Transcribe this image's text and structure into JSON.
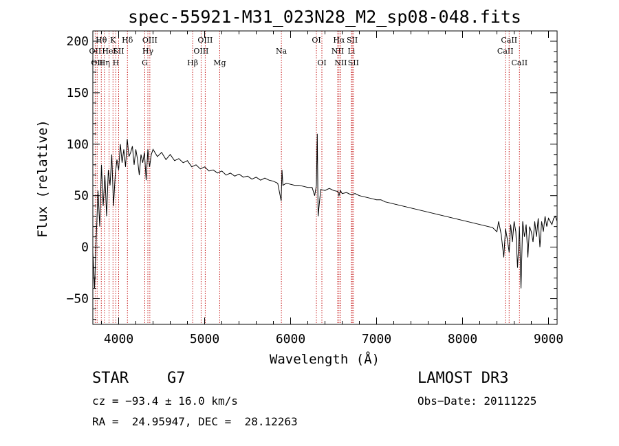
{
  "chart_data": {
    "type": "line",
    "title": "spec-55921-M31_023N28_M2_sp08-048.fits",
    "xlabel": "Wavelength (Å)",
    "ylabel": "Flux (relative)",
    "xlim": [
      3700,
      9100
    ],
    "ylim": [
      -75,
      210
    ],
    "x_ticks": [
      4000,
      5000,
      6000,
      7000,
      8000,
      9000
    ],
    "y_ticks": [
      -50,
      0,
      50,
      100,
      150,
      200
    ],
    "series": [
      {
        "name": "spectrum",
        "x": [
          3700,
          3720,
          3740,
          3760,
          3780,
          3800,
          3820,
          3840,
          3860,
          3880,
          3900,
          3920,
          3940,
          3960,
          3980,
          4000,
          4020,
          4040,
          4060,
          4080,
          4100,
          4120,
          4140,
          4160,
          4180,
          4200,
          4220,
          4240,
          4260,
          4280,
          4300,
          4320,
          4340,
          4360,
          4380,
          4400,
          4450,
          4500,
          4550,
          4600,
          4650,
          4700,
          4750,
          4800,
          4850,
          4900,
          4950,
          5000,
          5050,
          5100,
          5150,
          5200,
          5250,
          5300,
          5350,
          5400,
          5450,
          5500,
          5550,
          5600,
          5650,
          5700,
          5750,
          5800,
          5850,
          5890,
          5900,
          5910,
          5950,
          6000,
          6050,
          6100,
          6150,
          6200,
          6250,
          6280,
          6300,
          6310,
          6320,
          6350,
          6400,
          6450,
          6500,
          6550,
          6563,
          6580,
          6600,
          6650,
          6700,
          6750,
          6800,
          6850,
          6900,
          6950,
          7000,
          7050,
          7100,
          7150,
          7200,
          7250,
          7300,
          7350,
          7400,
          7450,
          7500,
          7550,
          7600,
          7650,
          7700,
          7750,
          7800,
          7850,
          7900,
          7950,
          8000,
          8050,
          8100,
          8150,
          8200,
          8250,
          8300,
          8350,
          8400,
          8420,
          8450,
          8480,
          8500,
          8520,
          8542,
          8560,
          8580,
          8600,
          8620,
          8640,
          8662,
          8680,
          8700,
          8720,
          8740,
          8760,
          8780,
          8800,
          8820,
          8840,
          8860,
          8880,
          8900,
          8920,
          8940,
          8960,
          8980,
          9000,
          9020,
          9040,
          9060,
          9080,
          9100
        ],
        "values": [
          -5,
          -40,
          10,
          55,
          20,
          80,
          40,
          70,
          30,
          75,
          60,
          90,
          40,
          70,
          85,
          75,
          100,
          82,
          95,
          78,
          105,
          88,
          92,
          98,
          80,
          95,
          85,
          70,
          90,
          82,
          92,
          65,
          95,
          78,
          90,
          95,
          88,
          92,
          85,
          90,
          84,
          86,
          82,
          84,
          78,
          80,
          76,
          78,
          74,
          75,
          72,
          74,
          70,
          72,
          69,
          71,
          68,
          69,
          66,
          68,
          65,
          67,
          65,
          64,
          62,
          45,
          75,
          60,
          62,
          61,
          60,
          60,
          59,
          58,
          58,
          50,
          60,
          110,
          30,
          56,
          55,
          57,
          55,
          54,
          50,
          55,
          52,
          53,
          51,
          52,
          50,
          49,
          48,
          47,
          46,
          46,
          44,
          43,
          42,
          41,
          40,
          39,
          38,
          37,
          36,
          35,
          34,
          33,
          32,
          31,
          30,
          29,
          28,
          27,
          26,
          25,
          24,
          23,
          22,
          21,
          20,
          19,
          15,
          25,
          12,
          -10,
          18,
          8,
          -5,
          22,
          5,
          25,
          15,
          -20,
          20,
          -40,
          25,
          10,
          22,
          -10,
          20,
          15,
          5,
          25,
          10,
          28,
          0,
          25,
          15,
          30,
          20,
          28,
          25,
          22,
          28,
          30,
          25
        ],
        "color": "#000000"
      }
    ],
    "line_markers": [
      {
        "wavelength": 3727,
        "label": "OII",
        "row": 1
      },
      {
        "wavelength": 3750,
        "label": "OII",
        "row": 2
      },
      {
        "wavelength": 3798,
        "label": "Hθ",
        "row": 0
      },
      {
        "wavelength": 3835,
        "label": "Hη",
        "row": 2
      },
      {
        "wavelength": 3889,
        "label": "HeI",
        "row": 1
      },
      {
        "wavelength": 3934,
        "label": "K",
        "row": 0
      },
      {
        "wavelength": 3968,
        "label": "H",
        "row": 2
      },
      {
        "wavelength": 4000,
        "label": "SII",
        "row": 1
      },
      {
        "wavelength": 4102,
        "label": "Hδ",
        "row": 0
      },
      {
        "wavelength": 4304,
        "label": "G",
        "row": 2
      },
      {
        "wavelength": 4340,
        "label": "Hγ",
        "row": 1
      },
      {
        "wavelength": 4363,
        "label": "OIII",
        "row": 0
      },
      {
        "wavelength": 4861,
        "label": "Hβ",
        "row": 2
      },
      {
        "wavelength": 4959,
        "label": "OIII",
        "row": 1
      },
      {
        "wavelength": 5007,
        "label": "OIII",
        "row": 0
      },
      {
        "wavelength": 5175,
        "label": "Mg",
        "row": 2
      },
      {
        "wavelength": 5893,
        "label": "Na",
        "row": 1
      },
      {
        "wavelength": 6300,
        "label": "OI",
        "row": 0
      },
      {
        "wavelength": 6364,
        "label": "OI",
        "row": 2
      },
      {
        "wavelength": 6548,
        "label": "NII",
        "row": 1
      },
      {
        "wavelength": 6563,
        "label": "Hα",
        "row": 0
      },
      {
        "wavelength": 6583,
        "label": "NII",
        "row": 2
      },
      {
        "wavelength": 6707,
        "label": "Li",
        "row": 1
      },
      {
        "wavelength": 6717,
        "label": "SII",
        "row": 0
      },
      {
        "wavelength": 6731,
        "label": "SII",
        "row": 2
      },
      {
        "wavelength": 8498,
        "label": "CaII",
        "row": 1
      },
      {
        "wavelength": 8542,
        "label": "CaII",
        "row": 0
      },
      {
        "wavelength": 8662,
        "label": "CaII",
        "row": 2
      }
    ]
  },
  "info": {
    "object_class": "STAR",
    "subclass": "G7",
    "survey": "LAMOST DR3",
    "redshift": "cz = −93.4 ± 16.0 km/s",
    "obs_date": "Obs−Date: 20111225",
    "coords": "RA =  24.95947, DEC =  28.12263"
  }
}
